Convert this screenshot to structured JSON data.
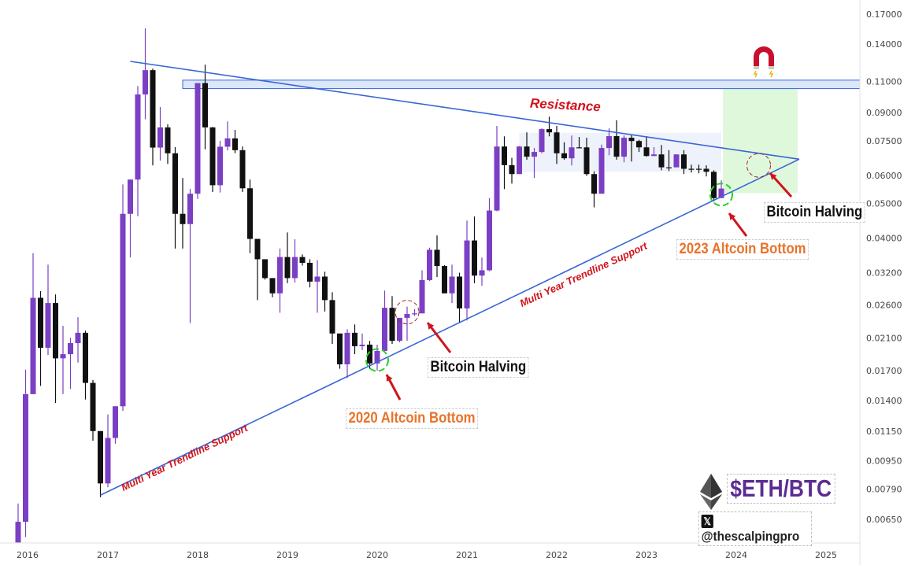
{
  "chart_data": {
    "type": "candlestick",
    "title": "$ETH/BTC",
    "interval": "monthly",
    "scale": "log",
    "ylim": [
      0.0056,
      0.17
    ],
    "xlim": [
      "2016-01",
      "2025-04"
    ],
    "y_ticks": [
      "0.17000",
      "0.14000",
      "0.11000",
      "0.09000",
      "0.07500",
      "0.06000",
      "0.05000",
      "0.04000",
      "0.03200",
      "0.02600",
      "0.02100",
      "0.01700",
      "0.01400",
      "0.01150",
      "0.00950",
      "0.00790",
      "0.00650"
    ],
    "x_ticks": [
      "2016",
      "2017",
      "2018",
      "2019",
      "2020",
      "2021",
      "2022",
      "2023",
      "2024",
      "2025"
    ],
    "colors": {
      "bull": "#7b3fc4",
      "bear": "#111111",
      "trendline": "#3a66d6",
      "zone": "#dbe7fb",
      "projection": "#d9f7d5",
      "arrow": "#d0141c"
    },
    "candles_fields": [
      "month",
      "open",
      "high",
      "low",
      "close"
    ],
    "candles": [
      [
        "2016-01",
        0.0056,
        0.0072,
        0.0056,
        0.0064
      ],
      [
        "2016-02",
        0.0064,
        0.0171,
        0.0058,
        0.0146
      ],
      [
        "2016-03",
        0.0146,
        0.0363,
        0.0146,
        0.0272
      ],
      [
        "2016-04",
        0.0272,
        0.0284,
        0.0154,
        0.0197
      ],
      [
        "2016-05",
        0.0197,
        0.0337,
        0.0188,
        0.0263
      ],
      [
        "2016-06",
        0.0263,
        0.0278,
        0.0138,
        0.0184
      ],
      [
        "2016-07",
        0.0184,
        0.0227,
        0.0146,
        0.0189
      ],
      [
        "2016-08",
        0.0189,
        0.021,
        0.0151,
        0.0203
      ],
      [
        "2016-09",
        0.0203,
        0.024,
        0.0179,
        0.0217
      ],
      [
        "2016-10",
        0.0217,
        0.022,
        0.0141,
        0.0157
      ],
      [
        "2016-11",
        0.0157,
        0.016,
        0.0108,
        0.0115
      ],
      [
        "2016-12",
        0.0115,
        0.0115,
        0.0075,
        0.0082
      ],
      [
        "2017-01",
        0.0082,
        0.0128,
        0.008,
        0.011
      ],
      [
        "2017-02",
        0.011,
        0.0135,
        0.0106,
        0.0135
      ],
      [
        "2017-03",
        0.0135,
        0.0566,
        0.0131,
        0.0468
      ],
      [
        "2017-04",
        0.0468,
        0.0584,
        0.0353,
        0.0584
      ],
      [
        "2017-05",
        0.0584,
        0.1069,
        0.0461,
        0.1012
      ],
      [
        "2017-06",
        0.1012,
        0.155,
        0.0862,
        0.1184
      ],
      [
        "2017-07",
        0.1184,
        0.1196,
        0.064,
        0.0718
      ],
      [
        "2017-08",
        0.0718,
        0.0933,
        0.066,
        0.0818
      ],
      [
        "2017-09",
        0.0818,
        0.0834,
        0.0646,
        0.0692
      ],
      [
        "2017-10",
        0.0692,
        0.072,
        0.0374,
        0.0468
      ],
      [
        "2017-11",
        0.0468,
        0.059,
        0.0374,
        0.0438
      ],
      [
        "2017-12",
        0.0438,
        0.055,
        0.0231,
        0.0533
      ],
      [
        "2018-01",
        0.0533,
        0.1089,
        0.0515,
        0.1089
      ],
      [
        "2018-02",
        0.1089,
        0.1227,
        0.071,
        0.0818
      ],
      [
        "2018-03",
        0.0818,
        0.082,
        0.0539,
        0.0563
      ],
      [
        "2018-04",
        0.0563,
        0.075,
        0.0537,
        0.0722
      ],
      [
        "2018-05",
        0.0722,
        0.085,
        0.0705,
        0.0762
      ],
      [
        "2018-06",
        0.0762,
        0.0805,
        0.0692,
        0.0706
      ],
      [
        "2018-07",
        0.0706,
        0.0723,
        0.0539,
        0.0552
      ],
      [
        "2018-08",
        0.0552,
        0.0584,
        0.0363,
        0.0398
      ],
      [
        "2018-09",
        0.0398,
        0.0398,
        0.0268,
        0.0349
      ],
      [
        "2018-10",
        0.0349,
        0.0349,
        0.0306,
        0.0309
      ],
      [
        "2018-11",
        0.0309,
        0.0309,
        0.0273,
        0.028
      ],
      [
        "2018-12",
        0.028,
        0.0374,
        0.0247,
        0.0354
      ],
      [
        "2019-01",
        0.0354,
        0.0415,
        0.0299,
        0.0309
      ],
      [
        "2019-02",
        0.0309,
        0.0397,
        0.03,
        0.0354
      ],
      [
        "2019-03",
        0.0354,
        0.036,
        0.0335,
        0.0341
      ],
      [
        "2019-04",
        0.0341,
        0.0349,
        0.0291,
        0.0302
      ],
      [
        "2019-05",
        0.0302,
        0.0347,
        0.0247,
        0.0312
      ],
      [
        "2019-06",
        0.0312,
        0.0322,
        0.0249,
        0.0268
      ],
      [
        "2019-07",
        0.0268,
        0.0282,
        0.0202,
        0.0216
      ],
      [
        "2019-08",
        0.0216,
        0.0216,
        0.0172,
        0.0177
      ],
      [
        "2019-09",
        0.0177,
        0.0222,
        0.0162,
        0.0217
      ],
      [
        "2019-10",
        0.0217,
        0.0229,
        0.0189,
        0.0199
      ],
      [
        "2019-11",
        0.0199,
        0.0216,
        0.0194,
        0.0201
      ],
      [
        "2019-12",
        0.0201,
        0.0206,
        0.0172,
        0.0178
      ],
      [
        "2020-01",
        0.0178,
        0.0201,
        0.017,
        0.0193
      ],
      [
        "2020-02",
        0.0193,
        0.0285,
        0.0193,
        0.0255
      ],
      [
        "2020-03",
        0.0255,
        0.0275,
        0.0202,
        0.0206
      ],
      [
        "2020-04",
        0.0206,
        0.0239,
        0.0204,
        0.0239
      ],
      [
        "2020-05",
        0.0239,
        0.0257,
        0.0206,
        0.0245
      ],
      [
        "2020-06",
        0.0245,
        0.0253,
        0.0242,
        0.0246
      ],
      [
        "2020-07",
        0.0246,
        0.0325,
        0.0246,
        0.0305
      ],
      [
        "2020-08",
        0.0305,
        0.0376,
        0.0303,
        0.0371
      ],
      [
        "2020-09",
        0.0371,
        0.0407,
        0.0311,
        0.0334
      ],
      [
        "2020-10",
        0.0334,
        0.0336,
        0.028,
        0.028
      ],
      [
        "2020-11",
        0.028,
        0.0337,
        0.0263,
        0.0312
      ],
      [
        "2020-12",
        0.0312,
        0.032,
        0.0231,
        0.0254
      ],
      [
        "2021-01",
        0.0254,
        0.0448,
        0.0235,
        0.0394
      ],
      [
        "2021-02",
        0.0394,
        0.046,
        0.0299,
        0.0314
      ],
      [
        "2021-03",
        0.0314,
        0.0353,
        0.0294,
        0.0325
      ],
      [
        "2021-04",
        0.0325,
        0.0518,
        0.0323,
        0.0478
      ],
      [
        "2021-05",
        0.0478,
        0.0826,
        0.0476,
        0.0723
      ],
      [
        "2021-06",
        0.0723,
        0.0772,
        0.0549,
        0.0641
      ],
      [
        "2021-07",
        0.0641,
        0.0672,
        0.0569,
        0.0605
      ],
      [
        "2021-08",
        0.0605,
        0.0725,
        0.0605,
        0.0723
      ],
      [
        "2021-09",
        0.0723,
        0.0792,
        0.0664,
        0.0677
      ],
      [
        "2021-10",
        0.0677,
        0.0716,
        0.059,
        0.0698
      ],
      [
        "2021-11",
        0.0698,
        0.0813,
        0.0692,
        0.0809
      ],
      [
        "2021-12",
        0.0809,
        0.0877,
        0.0772,
        0.0792
      ],
      [
        "2022-01",
        0.0792,
        0.0826,
        0.0646,
        0.0692
      ],
      [
        "2022-02",
        0.0692,
        0.0743,
        0.0664,
        0.067
      ],
      [
        "2022-03",
        0.067,
        0.0776,
        0.064,
        0.0719
      ],
      [
        "2022-04",
        0.0719,
        0.0769,
        0.0718,
        0.0718
      ],
      [
        "2022-05",
        0.0719,
        0.0765,
        0.0598,
        0.0605
      ],
      [
        "2022-06",
        0.0605,
        0.0616,
        0.0488,
        0.0533
      ],
      [
        "2022-07",
        0.0533,
        0.0732,
        0.0533,
        0.0716
      ],
      [
        "2022-08",
        0.0716,
        0.0813,
        0.0683,
        0.0773
      ],
      [
        "2022-09",
        0.0773,
        0.0857,
        0.0664,
        0.0677
      ],
      [
        "2022-10",
        0.0677,
        0.0776,
        0.0653,
        0.0765
      ],
      [
        "2022-11",
        0.0765,
        0.0783,
        0.0656,
        0.0749
      ],
      [
        "2022-12",
        0.0749,
        0.0755,
        0.0698,
        0.0719
      ],
      [
        "2023-01",
        0.0719,
        0.0773,
        0.0677,
        0.068
      ],
      [
        "2023-02",
        0.068,
        0.072,
        0.068,
        0.0687
      ],
      [
        "2023-03",
        0.0687,
        0.073,
        0.062,
        0.0632
      ],
      [
        "2023-04",
        0.0632,
        0.0706,
        0.0617,
        0.0631
      ],
      [
        "2023-05",
        0.0632,
        0.0688,
        0.0632,
        0.0687
      ],
      [
        "2023-06",
        0.0687,
        0.0706,
        0.0605,
        0.0626
      ],
      [
        "2023-07",
        0.0626,
        0.0643,
        0.0611,
        0.0625
      ],
      [
        "2023-08",
        0.0626,
        0.0643,
        0.0608,
        0.0625
      ],
      [
        "2023-09",
        0.0626,
        0.064,
        0.0596,
        0.0614
      ],
      [
        "2023-10",
        0.0614,
        0.062,
        0.0507,
        0.0518
      ],
      [
        "2023-11",
        0.0518,
        0.0581,
        0.0518,
        0.0551
      ]
    ],
    "overlays": {
      "resistance_zone": {
        "from": "2017-11",
        "low": 0.1051,
        "high": 0.111
      },
      "resistance_line": {
        "from": [
          "2017-04",
          0.1253
        ],
        "to": [
          "2024-09",
          0.0666
        ]
      },
      "support_line": {
        "from": [
          "2016-12",
          0.0076
        ],
        "to": [
          "2024-09",
          0.0666
        ]
      },
      "consolidation_zone": {
        "from": "2021-08",
        "to": "2023-11",
        "low": 0.0614,
        "high": 0.079
      },
      "projection_box": {
        "from": "2023-11",
        "to": "2024-09",
        "low": 0.0535,
        "high": 0.1054
      },
      "markers": [
        {
          "kind": "green-circle",
          "month": "2020-01",
          "price": 0.0182
        },
        {
          "kind": "red-circle",
          "month": "2020-05",
          "price": 0.0248
        },
        {
          "kind": "green-circle",
          "month": "2023-11",
          "price": 0.053
        },
        {
          "kind": "red-circle",
          "month": "2024-04",
          "price": 0.064
        }
      ]
    },
    "annotations": {
      "resistance": "Resistance",
      "support_left": "Multi Year Trendline Support",
      "support_right": "Multi Year Trendline Support",
      "halving_2020": "Bitcoin Halving",
      "halving_2024": "Bitcoin Halving",
      "bottom_2020": "2020 Altcoin Bottom",
      "bottom_2023": "2023 Altcoin Bottom"
    }
  },
  "brand": {
    "pair": "$ETH/BTC",
    "handle": "@thescalpingpro",
    "x_icon": "𝕏"
  }
}
